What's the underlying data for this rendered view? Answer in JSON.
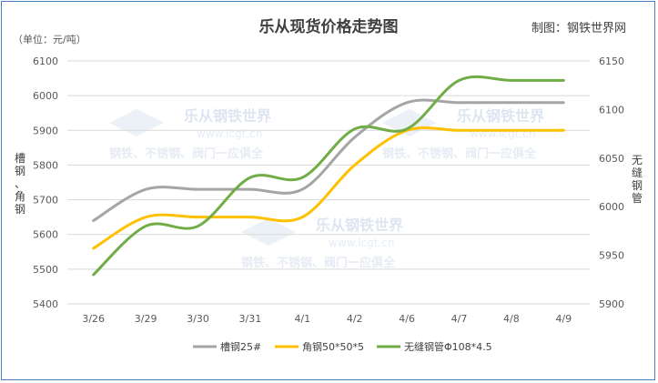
{
  "chart_data": {
    "type": "line",
    "title": "乐从现货价格走势图",
    "source_note": "制图：钢铁世界网",
    "unit_label": "（单位：元/吨）",
    "left_axis_label": "槽钢、角钢",
    "right_axis_label": "无缝钢管",
    "categories": [
      "3/26",
      "3/29",
      "3/30",
      "3/31",
      "4/1",
      "4/2",
      "4/6",
      "4/7",
      "4/8",
      "4/9"
    ],
    "left_ylim": [
      5400,
      6100
    ],
    "left_ticks": [
      "5400",
      "5500",
      "5600",
      "5700",
      "5800",
      "5900",
      "6000",
      "6100"
    ],
    "right_ylim": [
      5900,
      6150
    ],
    "right_ticks": [
      "5900",
      "5950",
      "6000",
      "6050",
      "6100",
      "6150"
    ],
    "series": [
      {
        "name": "槽钢25#",
        "axis": "left",
        "color": "#a5a5a5",
        "values": [
          5640,
          5730,
          5730,
          5730,
          5730,
          5880,
          5980,
          5980,
          5980,
          5980
        ]
      },
      {
        "name": "角钢50*50*5",
        "axis": "left",
        "color": "#ffc000",
        "values": [
          5560,
          5650,
          5650,
          5650,
          5650,
          5800,
          5900,
          5900,
          5900,
          5900
        ]
      },
      {
        "name": "无缝钢管Φ108*4.5",
        "axis": "right",
        "color": "#70ad47",
        "values": [
          5930,
          5980,
          5980,
          6030,
          6030,
          6080,
          6080,
          6130,
          6130,
          6130
        ]
      }
    ],
    "grid": true,
    "legend_position": "bottom"
  },
  "watermark": {
    "brand": "乐从钢铁世界",
    "url": "www.lcgt.cn",
    "slogan": "钢铁、不锈钢、阀门一应俱全"
  }
}
